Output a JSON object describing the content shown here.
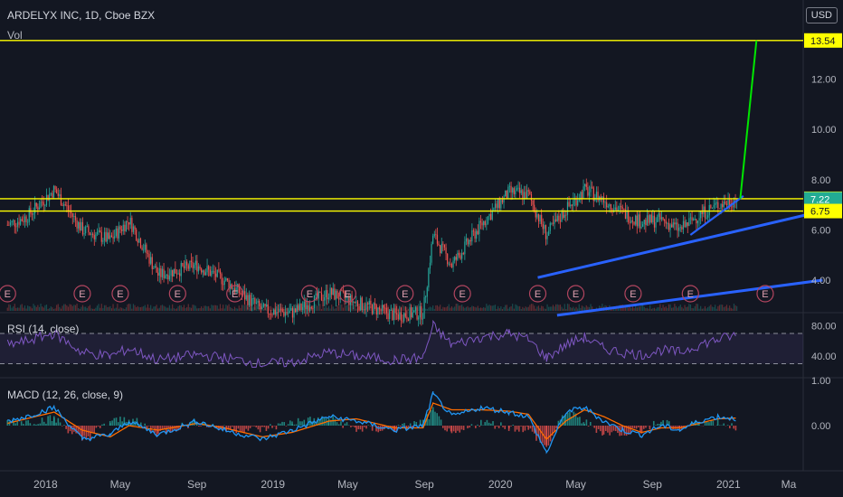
{
  "header": {
    "title": "ARDELYX INC, 1D, Cboe BZX",
    "vol_label": "Vol",
    "currency": "USD"
  },
  "indicators": {
    "rsi_label": "RSI (14, close)",
    "macd_label": "MACD (12, 26, close, 9)"
  },
  "colors": {
    "background": "#131722",
    "up": "#26a69a",
    "down": "#ef5350",
    "level": "#ffff00",
    "trend": "#2962ff",
    "target": "#00e600",
    "earnings": "#b2455f",
    "rsi": "#7e57c2",
    "macd": "#2196f3",
    "signal": "#ff6d00"
  },
  "chart_data": [
    {
      "type": "line",
      "title": "ARDELYX INC, 1D, Cboe BZX",
      "x_ticks": [
        "2018",
        "May",
        "Sep",
        "2019",
        "May",
        "Sep",
        "2020",
        "May",
        "Sep",
        "2021",
        "Ma"
      ],
      "y_ticks": [
        4.0,
        6.0,
        8.0,
        10.0,
        12.0
      ],
      "ylim": [
        2.5,
        14.5
      ],
      "series": [
        {
          "name": "",
          "x": [
            "2017-11-01",
            "2017-12-01",
            "2018-01-15",
            "2018-03-01",
            "2018-04-15",
            "2018-05-15",
            "2018-07-01",
            "2018-09-01",
            "2018-10-15",
            "2018-12-15",
            "2019-02-01",
            "2019-04-01",
            "2019-05-15",
            "2019-07-15",
            "2019-08-30",
            "2019-09-15",
            "2019-10-15",
            "2019-12-01",
            "2020-01-15",
            "2020-02-15",
            "2020-03-15",
            "2020-04-15",
            "2020-05-15",
            "2020-06-15",
            "2020-07-15",
            "2020-08-15",
            "2020-09-15",
            "2020-10-15",
            "2020-11-15",
            "2020-12-15",
            "2021-01-15"
          ],
          "values": [
            6.2,
            6.5,
            7.6,
            6.0,
            5.6,
            6.4,
            4.2,
            4.6,
            4.0,
            2.8,
            2.7,
            3.5,
            3.1,
            2.6,
            2.7,
            5.8,
            4.6,
            6.2,
            7.5,
            7.4,
            5.8,
            6.8,
            7.6,
            7.2,
            6.7,
            6.3,
            6.4,
            6.0,
            6.6,
            7.0,
            7.22
          ]
        }
      ],
      "levels": [
        13.54,
        7.24,
        6.75
      ],
      "current_price": 7.22,
      "earnings_marker": "E",
      "earnings_dates": [
        "2017-11-01",
        "2018-03-01",
        "2018-05-01",
        "2018-08-01",
        "2018-11-01",
        "2019-03-01",
        "2019-05-01",
        "2019-08-01",
        "2019-11-01",
        "2020-03-01",
        "2020-05-01",
        "2020-08-01",
        "2020-11-01",
        "2021-03-01"
      ],
      "projection": {
        "x": [
          "2021-01-20",
          "2021-02-15"
        ],
        "values": [
          7.24,
          13.54
        ]
      },
      "trendlines": [
        {
          "x": [
            "2020-03-01",
            "2021-06-01"
          ],
          "values": [
            4.1,
            6.75
          ]
        },
        {
          "x": [
            "2020-04-01",
            "2021-06-01"
          ],
          "values": [
            2.6,
            4.0
          ]
        }
      ]
    },
    {
      "type": "line",
      "title": "RSI (14, close)",
      "y_ticks": [
        40.0,
        80.0
      ],
      "ylim": [
        20,
        90
      ],
      "bands": [
        70,
        30
      ],
      "series": [
        {
          "name": "",
          "values": [
            55,
            60,
            70,
            45,
            40,
            50,
            35,
            42,
            38,
            30,
            32,
            45,
            40,
            35,
            38,
            80,
            55,
            65,
            70,
            62,
            38,
            55,
            65,
            50,
            45,
            42,
            48,
            45,
            55,
            62,
            68
          ]
        }
      ]
    },
    {
      "type": "line",
      "title": "MACD (12, 26, close, 9)",
      "y_ticks": [
        0.0,
        1.0
      ],
      "ylim": [
        -1.6,
        1.1
      ],
      "series": [
        {
          "name": "",
          "values": [
            0.1,
            0.2,
            0.4,
            -0.3,
            -0.2,
            0.1,
            -0.2,
            0.1,
            -0.1,
            -0.3,
            -0.1,
            0.2,
            0.1,
            -0.1,
            0.0,
            0.7,
            0.2,
            0.4,
            0.3,
            0.2,
            -0.6,
            0.3,
            0.4,
            0.1,
            -0.1,
            -0.2,
            0.0,
            -0.1,
            0.1,
            0.2,
            0.15
          ]
        },
        {
          "name": "",
          "values": [
            0.05,
            0.15,
            0.3,
            -0.1,
            -0.25,
            0.0,
            -0.1,
            0.05,
            -0.05,
            -0.25,
            -0.15,
            0.1,
            0.15,
            -0.05,
            -0.05,
            0.5,
            0.35,
            0.35,
            0.32,
            0.25,
            -0.3,
            0.1,
            0.35,
            0.2,
            0.0,
            -0.15,
            -0.05,
            -0.05,
            0.05,
            0.15,
            0.17
          ]
        }
      ]
    }
  ]
}
